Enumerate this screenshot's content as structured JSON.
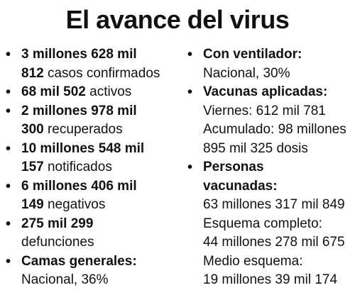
{
  "title": "El avance del virus",
  "left": [
    {
      "lines": [
        [
          {
            "t": "3 millones 628 mil",
            "b": true
          }
        ],
        [
          {
            "t": "812",
            "b": true
          },
          {
            "t": " casos confirmados",
            "b": false
          }
        ]
      ]
    },
    {
      "lines": [
        [
          {
            "t": "68 mil 502",
            "b": true
          },
          {
            "t": " activos",
            "b": false
          }
        ]
      ]
    },
    {
      "lines": [
        [
          {
            "t": "2 millones 978 mil",
            "b": true
          }
        ],
        [
          {
            "t": "300",
            "b": true
          },
          {
            "t": " recuperados",
            "b": false
          }
        ]
      ]
    },
    {
      "lines": [
        [
          {
            "t": "10 millones 548 mil",
            "b": true
          }
        ],
        [
          {
            "t": "157",
            "b": true
          },
          {
            "t": " notificados",
            "b": false
          }
        ]
      ]
    },
    {
      "lines": [
        [
          {
            "t": "6 millones 406 mil",
            "b": true
          }
        ],
        [
          {
            "t": "149",
            "b": true
          },
          {
            "t": " negativos",
            "b": false
          }
        ]
      ]
    },
    {
      "lines": [
        [
          {
            "t": "275 mil 299",
            "b": true
          }
        ],
        [
          {
            "t": "defunciones",
            "b": false
          }
        ]
      ]
    },
    {
      "lines": [
        [
          {
            "t": "Camas generales:",
            "b": true
          }
        ],
        [
          {
            "t": "Nacional, 36%",
            "b": false
          }
        ]
      ]
    }
  ],
  "right": [
    {
      "lines": [
        [
          {
            "t": "Con ventilador:",
            "b": true
          }
        ],
        [
          {
            "t": "Nacional, 30%",
            "b": false
          }
        ]
      ]
    },
    {
      "lines": [
        [
          {
            "t": "Vacunas aplicadas:",
            "b": true
          }
        ],
        [
          {
            "t": "Viernes: 612 mil 781",
            "b": false
          }
        ],
        [
          {
            "t": "Acumulado: 98 millones",
            "b": false
          }
        ],
        [
          {
            "t": "895 mil 325 dosis",
            "b": false
          }
        ]
      ]
    },
    {
      "lines": [
        [
          {
            "t": "Personas",
            "b": true
          }
        ],
        [
          {
            "t": "vacunadas:",
            "b": true
          }
        ],
        [
          {
            "t": "63 millones 317 mil 849",
            "b": false
          }
        ],
        [
          {
            "t": "Esquema completo:",
            "b": false
          }
        ],
        [
          {
            "t": "44 millones 278 mil 675",
            "b": false
          }
        ],
        [
          {
            "t": "Medio esquema:",
            "b": false
          }
        ],
        [
          {
            "t": "19 millones 39 mil 174",
            "b": false
          }
        ]
      ]
    }
  ]
}
